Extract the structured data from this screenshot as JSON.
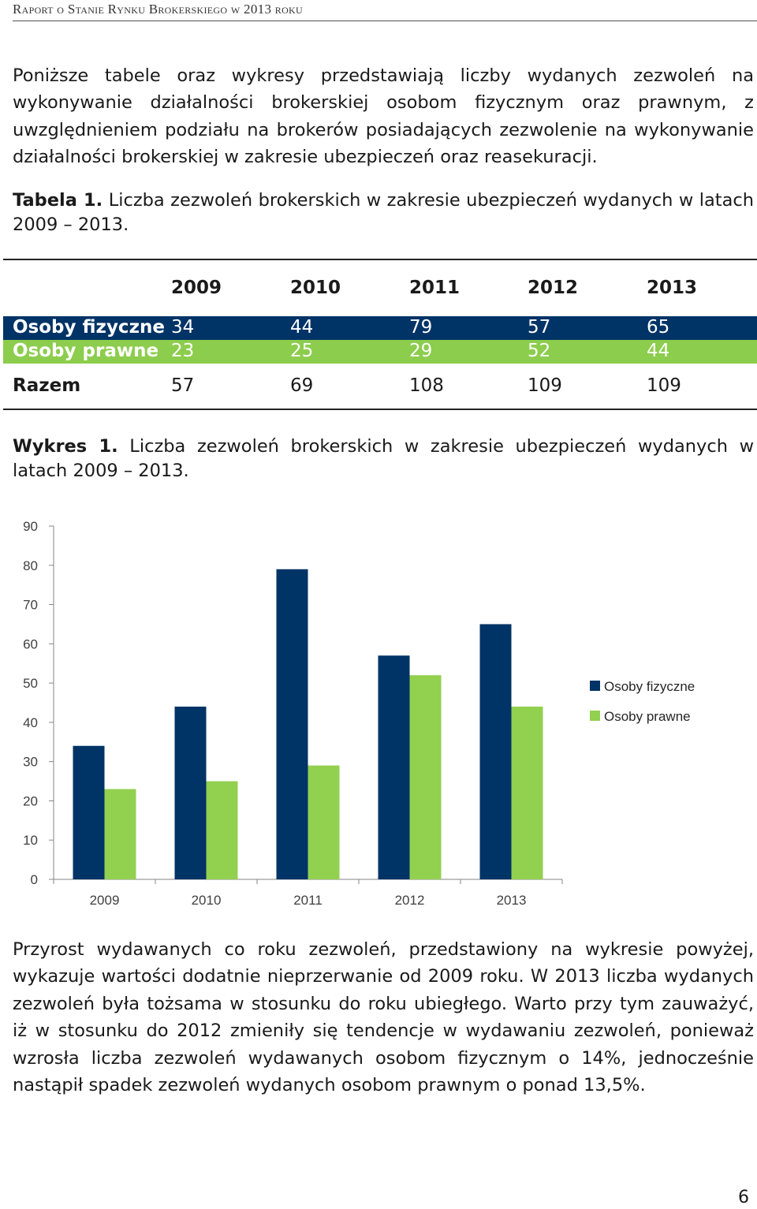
{
  "header": {
    "title": "Raport o Stanie Rynku Brokerskiego w 2013 roku"
  },
  "intro_paragraph": "Poniższe tabele oraz wykresy przedstawiają liczby wydanych zezwoleń na wykonywanie działalności brokerskiej osobom fizycznym oraz prawnym, z uwzględnieniem podziału na brokerów posiadających zezwolenie na wykonywanie działalności brokerskiej w zakresie ubezpieczeń oraz reasekuracji.",
  "table_caption": {
    "label": "Tabela 1.",
    "text": "Liczba zezwoleń brokerskich w zakresie ubezpieczeń wydanych w latach",
    "years": "2009 – 2013."
  },
  "table": {
    "years": [
      "2009",
      "2010",
      "2011",
      "2012",
      "2013"
    ],
    "rows": [
      {
        "label": "Osoby fizyczne",
        "values": [
          "34",
          "44",
          "79",
          "57",
          "65"
        ]
      },
      {
        "label": "Osoby prawne",
        "values": [
          "23",
          "25",
          "29",
          "52",
          "44"
        ]
      }
    ],
    "total": {
      "label": "Razem",
      "values": [
        "57",
        "69",
        "108",
        "109",
        "109"
      ]
    }
  },
  "chart_caption": {
    "label": "Wykres 1.",
    "text": "Liczba zezwoleń brokerskich w zakresie ubezpieczeń wydanych w latach",
    "years": "2009 – 2013."
  },
  "chart_data": {
    "type": "bar",
    "categories": [
      "2009",
      "2010",
      "2011",
      "2012",
      "2013"
    ],
    "series": [
      {
        "name": "Osoby fizyczne",
        "values": [
          34,
          44,
          79,
          57,
          65
        ],
        "color": "#003366"
      },
      {
        "name": "Osoby prawne",
        "values": [
          23,
          25,
          29,
          52,
          44
        ],
        "color": "#92d050"
      }
    ],
    "ylim": [
      0,
      90
    ],
    "yticks": [
      0,
      10,
      20,
      30,
      40,
      50,
      60,
      70,
      80,
      90
    ],
    "grid": false,
    "legend": "right"
  },
  "conclusion_paragraph": "Przyrost wydawanych co roku zezwoleń, przedstawiony na wykresie powyżej, wykazuje wartości dodatnie nieprzerwanie od 2009 roku. W 2013 liczba wydanych zezwoleń była tożsama w stosunku do roku ubiegłego. Warto przy tym zauważyć, iż w stosunku do 2012 zmieniły się tendencje w wydawaniu zezwoleń, ponieważ wzrosła liczba zezwoleń wydawanych osobom fizycznym o 14%, jednocześnie nastąpił spadek zezwoleń wydanych osobom prawnym o ponad 13,5%.",
  "page_number": "6"
}
